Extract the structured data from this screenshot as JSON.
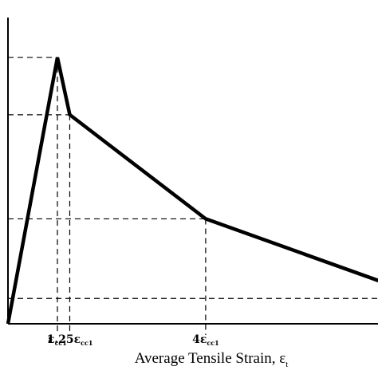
{
  "chart_data": {
    "type": "line",
    "xlabel": {
      "main": "Average Tensile Strain, ε",
      "sub": "t"
    },
    "ylabel": "",
    "x_ticks": [
      {
        "main": "ε",
        "sub": "cc1"
      },
      {
        "main": "1.25ε",
        "sub": "cc1"
      },
      {
        "main": "4ε",
        "sub": "cc1"
      }
    ],
    "y_ticks": [
      "",
      "",
      ""
    ],
    "series": [
      {
        "x": [
          0,
          1,
          1.25,
          4,
          7.6
        ],
        "y": [
          0,
          1,
          0.785,
          0.394,
          0.155
        ]
      }
    ],
    "reference_lines": {
      "vertical_x": [
        1,
        1.25,
        4
      ],
      "horizontal_y": [
        1,
        0.785,
        0.394,
        0.095
      ]
    },
    "xlim": [
      0,
      7.6
    ],
    "ylim": [
      0,
      1.15
    ],
    "grid": false,
    "legend": "none",
    "colors": {
      "line": "#000000",
      "axis": "#000000",
      "dash": "#000000"
    }
  }
}
